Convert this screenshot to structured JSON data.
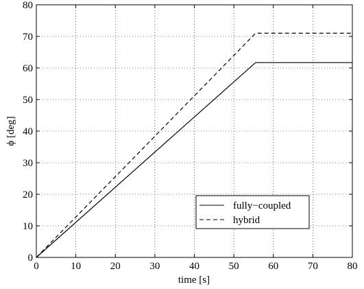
{
  "chart_data": {
    "type": "line",
    "title": "",
    "xlabel": "time [s]",
    "ylabel": "ϕ [deg]",
    "xlim": [
      0,
      80
    ],
    "ylim": [
      0,
      80
    ],
    "xticks": [
      0,
      10,
      20,
      30,
      40,
      50,
      60,
      70,
      80
    ],
    "yticks": [
      0,
      10,
      20,
      30,
      40,
      50,
      60,
      70,
      80
    ],
    "grid": true,
    "legend_position": "lower-right",
    "series": [
      {
        "name": "fully−coupled",
        "style": "solid",
        "color": "#000000",
        "x": [
          0,
          55.5,
          80
        ],
        "y": [
          0,
          61.7,
          61.7
        ]
      },
      {
        "name": "hybrid",
        "style": "dashed",
        "color": "#000000",
        "x": [
          0,
          55.5,
          80
        ],
        "y": [
          0,
          71.0,
          71.0
        ]
      }
    ]
  }
}
